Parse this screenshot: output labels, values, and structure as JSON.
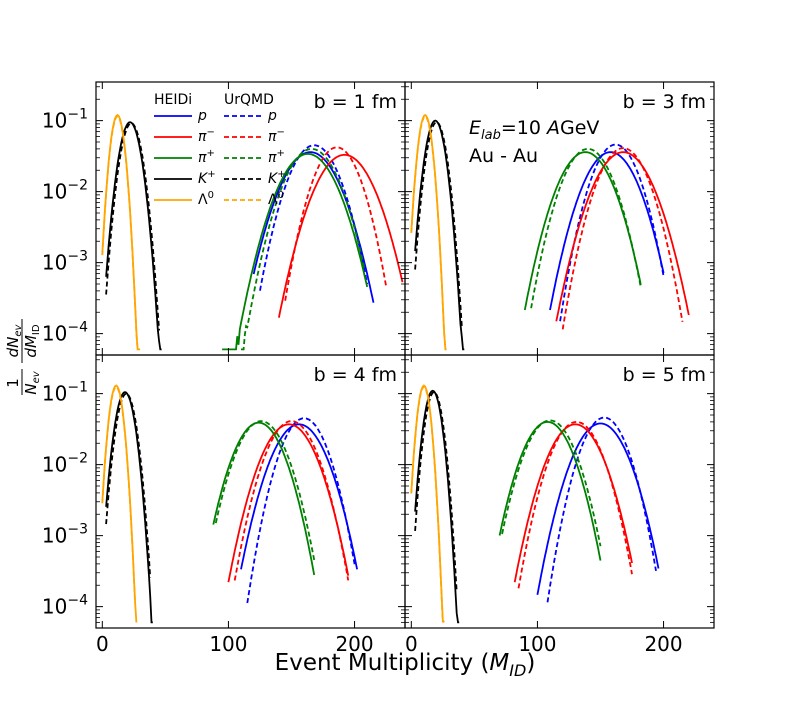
{
  "chart_data": {
    "type": "line",
    "title": "",
    "xlabel": "Event Multiplicity",
    "xlabel_symbol": "M",
    "xlabel_subscript": "ID",
    "ylabel": "1/N_ev dN_ev/dM_ID",
    "ylabel_parts": {
      "num1": "1",
      "den1": "N",
      "den1_sub": "ev",
      "num2": "dN",
      "num2_sub": "ev",
      "den2": "dM",
      "den2_sub": "ID"
    },
    "yscale": "log",
    "xlim": [
      -5,
      240
    ],
    "ylim": [
      5e-05,
      0.35
    ],
    "x_ticks": [
      0,
      100,
      200
    ],
    "x_tick_labels": [
      "0",
      "100",
      "200"
    ],
    "y_ticks": [
      0.1,
      0.01,
      0.001,
      0.0001
    ],
    "y_tick_labels": [
      {
        "base": "10",
        "exp": "−1"
      },
      {
        "base": "10",
        "exp": "−2"
      },
      {
        "base": "10",
        "exp": "−3"
      },
      {
        "base": "10",
        "exp": "−4"
      }
    ],
    "legend": {
      "location": "top-left",
      "header_solid": "HEIDi",
      "header_dashed": "UrQMD",
      "entries": [
        {
          "label": "p",
          "italic": true,
          "sup": "",
          "color": "#0000ff"
        },
        {
          "label": "π",
          "italic": true,
          "sup": "−",
          "color": "#ff0000"
        },
        {
          "label": "π",
          "italic": true,
          "sup": "+",
          "color": "#008000"
        },
        {
          "label": "K",
          "italic": true,
          "sup": "+",
          "color": "#000000"
        },
        {
          "label": "Λ",
          "italic": false,
          "sup": "0",
          "color": "#ffa500"
        }
      ]
    },
    "panels": [
      {
        "label": "b = 1 fm",
        "system_annotation": null,
        "series": [
          {
            "species": "p",
            "model": "HEIDi",
            "style": "solid",
            "color": "#0000ff",
            "mean": 165,
            "sigma": 16,
            "peak": 0.036,
            "xmin": 120,
            "xmax": 215
          },
          {
            "species": "p",
            "model": "UrQMD",
            "style": "dashed",
            "color": "#0000ff",
            "mean": 168,
            "sigma": 14,
            "peak": 0.045,
            "xmin": 125,
            "xmax": 210
          },
          {
            "species": "π-",
            "model": "HEIDi",
            "style": "solid",
            "color": "#ff0000",
            "mean": 192,
            "sigma": 16,
            "peak": 0.033,
            "xmin": 140,
            "xmax": 238
          },
          {
            "species": "π-",
            "model": "UrQMD",
            "style": "dashed",
            "color": "#ff0000",
            "mean": 186,
            "sigma": 13,
            "peak": 0.042,
            "xmin": 145,
            "xmax": 225
          },
          {
            "species": "π+",
            "model": "HEIDi",
            "style": "solid",
            "color": "#008000",
            "mean": 163,
            "sigma": 16,
            "peak": 0.034,
            "xmin": 95,
            "xmax": 210
          },
          {
            "species": "π+",
            "model": "UrQMD",
            "style": "dashed",
            "color": "#008000",
            "mean": 166,
            "sigma": 15,
            "peak": 0.04,
            "xmin": 110,
            "xmax": 208
          },
          {
            "species": "K+",
            "model": "HEIDi",
            "style": "solid",
            "color": "#000000",
            "mean": 22,
            "sigma": 6.0,
            "peak": 0.095,
            "xmin": 3,
            "xmax": 47
          },
          {
            "species": "K+",
            "model": "UrQMD",
            "style": "dashed",
            "color": "#000000",
            "mean": 23,
            "sigma": 6.0,
            "peak": 0.092,
            "xmin": 3,
            "xmax": 45
          },
          {
            "species": "Λ0",
            "model": "HEIDi",
            "style": "solid",
            "color": "#ffa500",
            "mean": 12,
            "sigma": 4.0,
            "peak": 0.12,
            "xmin": 0,
            "xmax": 30
          },
          {
            "species": "Λ0",
            "model": "UrQMD",
            "style": "dashed",
            "color": "#ffa500",
            "mean": 12,
            "sigma": 4.0,
            "peak": 0.115,
            "xmin": 0,
            "xmax": 28
          }
        ]
      },
      {
        "label": "b = 3 fm",
        "system_annotation": {
          "line1_prefix": "E",
          "line1_sub": "lab",
          "line1_value": "=10 ",
          "line1_unit_italic": "A",
          "line1_unit": "GeV",
          "line2": "Au - Au"
        },
        "series": [
          {
            "species": "p",
            "model": "HEIDi",
            "style": "solid",
            "color": "#0000ff",
            "mean": 158,
            "sigma": 15,
            "peak": 0.036,
            "xmin": 110,
            "xmax": 200
          },
          {
            "species": "p",
            "model": "UrQMD",
            "style": "dashed",
            "color": "#0000ff",
            "mean": 162,
            "sigma": 13,
            "peak": 0.046,
            "xmin": 118,
            "xmax": 200
          },
          {
            "species": "π-",
            "model": "HEIDi",
            "style": "solid",
            "color": "#ff0000",
            "mean": 168,
            "sigma": 16,
            "peak": 0.036,
            "xmin": 115,
            "xmax": 220
          },
          {
            "species": "π-",
            "model": "UrQMD",
            "style": "dashed",
            "color": "#ff0000",
            "mean": 168,
            "sigma": 14,
            "peak": 0.041,
            "xmin": 120,
            "xmax": 215
          },
          {
            "species": "π+",
            "model": "HEIDi",
            "style": "solid",
            "color": "#008000",
            "mean": 138,
            "sigma": 15,
            "peak": 0.036,
            "xmin": 90,
            "xmax": 182
          },
          {
            "species": "π+",
            "model": "UrQMD",
            "style": "dashed",
            "color": "#008000",
            "mean": 140,
            "sigma": 14,
            "peak": 0.04,
            "xmin": 95,
            "xmax": 182
          },
          {
            "species": "K+",
            "model": "HEIDi",
            "style": "solid",
            "color": "#000000",
            "mean": 19,
            "sigma": 5.5,
            "peak": 0.1,
            "xmin": 3,
            "xmax": 42
          },
          {
            "species": "K+",
            "model": "UrQMD",
            "style": "dashed",
            "color": "#000000",
            "mean": 20,
            "sigma": 5.5,
            "peak": 0.095,
            "xmin": 3,
            "xmax": 40
          },
          {
            "species": "Λ0",
            "model": "HEIDi",
            "style": "solid",
            "color": "#ffa500",
            "mean": 11,
            "sigma": 4.0,
            "peak": 0.12,
            "xmin": 0,
            "xmax": 28
          },
          {
            "species": "Λ0",
            "model": "UrQMD",
            "style": "dashed",
            "color": "#ffa500",
            "mean": 11,
            "sigma": 4.0,
            "peak": 0.115,
            "xmin": 0,
            "xmax": 27
          }
        ]
      },
      {
        "label": "b = 4 fm",
        "system_annotation": null,
        "series": [
          {
            "species": "p",
            "model": "HEIDi",
            "style": "solid",
            "color": "#0000ff",
            "mean": 156,
            "sigma": 15,
            "peak": 0.037,
            "xmin": 110,
            "xmax": 202
          },
          {
            "species": "p",
            "model": "UrQMD",
            "style": "dashed",
            "color": "#0000ff",
            "mean": 160,
            "sigma": 13,
            "peak": 0.045,
            "xmin": 115,
            "xmax": 200
          },
          {
            "species": "π-",
            "model": "HEIDi",
            "style": "solid",
            "color": "#ff0000",
            "mean": 148,
            "sigma": 15,
            "peak": 0.037,
            "xmin": 100,
            "xmax": 195
          },
          {
            "species": "π-",
            "model": "UrQMD",
            "style": "dashed",
            "color": "#ff0000",
            "mean": 150,
            "sigma": 14,
            "peak": 0.041,
            "xmin": 105,
            "xmax": 195
          },
          {
            "species": "π+",
            "model": "HEIDi",
            "style": "solid",
            "color": "#008000",
            "mean": 124,
            "sigma": 14,
            "peak": 0.039,
            "xmin": 88,
            "xmax": 168
          },
          {
            "species": "π+",
            "model": "UrQMD",
            "style": "dashed",
            "color": "#008000",
            "mean": 126,
            "sigma": 14,
            "peak": 0.041,
            "xmin": 90,
            "xmax": 168
          },
          {
            "species": "K+",
            "model": "HEIDi",
            "style": "solid",
            "color": "#000000",
            "mean": 18,
            "sigma": 5.5,
            "peak": 0.105,
            "xmin": 3,
            "xmax": 40
          },
          {
            "species": "K+",
            "model": "UrQMD",
            "style": "dashed",
            "color": "#000000",
            "mean": 19,
            "sigma": 5.5,
            "peak": 0.1,
            "xmin": 3,
            "xmax": 38
          },
          {
            "species": "Λ0",
            "model": "HEIDi",
            "style": "solid",
            "color": "#ffa500",
            "mean": 11,
            "sigma": 4.0,
            "peak": 0.13,
            "xmin": 0,
            "xmax": 27
          },
          {
            "species": "Λ0",
            "model": "UrQMD",
            "style": "dashed",
            "color": "#ffa500",
            "mean": 11,
            "sigma": 4.0,
            "peak": 0.125,
            "xmin": 0,
            "xmax": 26
          }
        ]
      },
      {
        "label": "b = 5 fm",
        "system_annotation": null,
        "series": [
          {
            "species": "p",
            "model": "HEIDi",
            "style": "solid",
            "color": "#0000ff",
            "mean": 150,
            "sigma": 15,
            "peak": 0.038,
            "xmin": 100,
            "xmax": 196
          },
          {
            "species": "p",
            "model": "UrQMD",
            "style": "dashed",
            "color": "#0000ff",
            "mean": 153,
            "sigma": 13,
            "peak": 0.046,
            "xmin": 108,
            "xmax": 194
          },
          {
            "species": "π-",
            "model": "HEIDi",
            "style": "solid",
            "color": "#ff0000",
            "mean": 130,
            "sigma": 15,
            "peak": 0.037,
            "xmin": 82,
            "xmax": 175
          },
          {
            "species": "π-",
            "model": "UrQMD",
            "style": "dashed",
            "color": "#ff0000",
            "mean": 131,
            "sigma": 14,
            "peak": 0.04,
            "xmin": 85,
            "xmax": 175
          },
          {
            "species": "π+",
            "model": "HEIDi",
            "style": "solid",
            "color": "#008000",
            "mean": 108,
            "sigma": 14,
            "peak": 0.04,
            "xmin": 70,
            "xmax": 150
          },
          {
            "species": "π+",
            "model": "UrQMD",
            "style": "dashed",
            "color": "#008000",
            "mean": 110,
            "sigma": 14,
            "peak": 0.042,
            "xmin": 72,
            "xmax": 150
          },
          {
            "species": "K+",
            "model": "HEIDi",
            "style": "solid",
            "color": "#000000",
            "mean": 17,
            "sigma": 5.0,
            "peak": 0.11,
            "xmin": 3,
            "xmax": 38
          },
          {
            "species": "K+",
            "model": "UrQMD",
            "style": "dashed",
            "color": "#000000",
            "mean": 18,
            "sigma": 5.0,
            "peak": 0.105,
            "xmin": 3,
            "xmax": 36
          },
          {
            "species": "Λ0",
            "model": "HEIDi",
            "style": "solid",
            "color": "#ffa500",
            "mean": 10,
            "sigma": 3.8,
            "peak": 0.13,
            "xmin": 0,
            "xmax": 26
          },
          {
            "species": "Λ0",
            "model": "UrQMD",
            "style": "dashed",
            "color": "#ffa500",
            "mean": 10,
            "sigma": 3.8,
            "peak": 0.125,
            "xmin": 0,
            "xmax": 25
          }
        ]
      }
    ]
  }
}
